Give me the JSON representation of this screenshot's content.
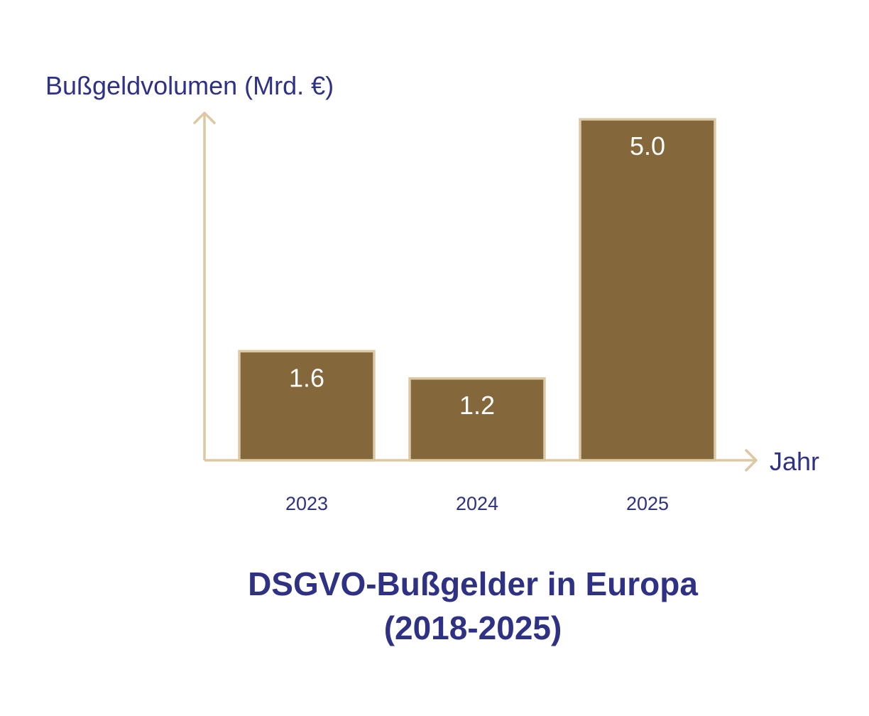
{
  "chart_data": {
    "type": "bar",
    "title": [
      "DSGVO-Bußgelder in Europa",
      "(2018-2025)"
    ],
    "ylabel": "Bußgeldvolumen (Mrd. €)",
    "xlabel": "Jahr",
    "categories": [
      "2023",
      "2024",
      "2025"
    ],
    "values": [
      1.6,
      1.2,
      5.0
    ],
    "value_labels": [
      "1.6",
      "1.2",
      "5.0"
    ],
    "ylim": [
      0,
      5.0
    ],
    "grid": false,
    "legend": "none",
    "colors": {
      "bar_fill": "#84673A",
      "bar_stroke": "#DCC8A2",
      "axis": "#DCC8A2",
      "text": "#2E3184",
      "value_text": "#FFFFFF"
    }
  }
}
